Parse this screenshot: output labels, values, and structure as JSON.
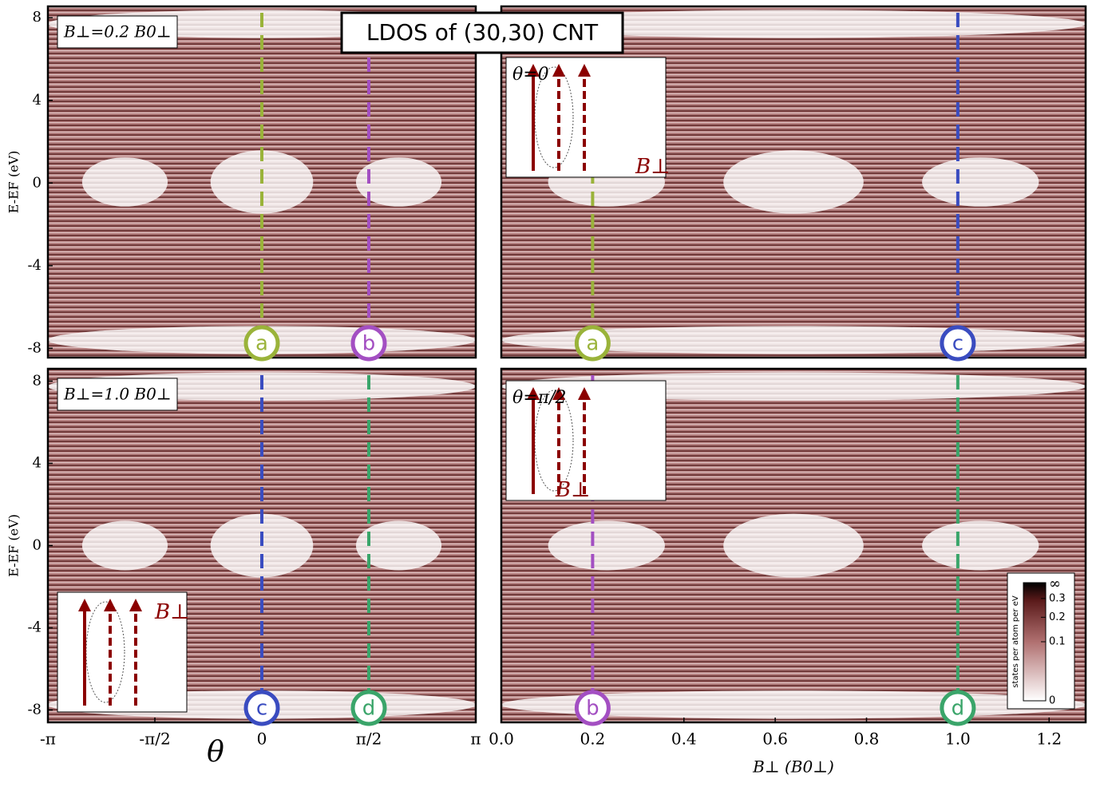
{
  "title": "LDOS of (30,30) CNT",
  "chart_data": [
    {
      "type": "heatmap",
      "annotation": "B⊥=0.2 B0⊥",
      "ylabel": "E-EF (eV)",
      "xlim": [
        -3.1416,
        3.1416
      ],
      "ylim": [
        -8.45,
        8.55
      ],
      "yticks": [
        -8,
        -4,
        0,
        4,
        8
      ],
      "markers": [
        {
          "x": 0,
          "label": "a",
          "color": "#9ab33a"
        },
        {
          "x": 1.5708,
          "label": "b",
          "color": "#a34fc2"
        }
      ]
    },
    {
      "type": "heatmap",
      "annotation": "θ=0",
      "inset_label": "B⊥",
      "xlim": [
        0,
        1.28
      ],
      "ylim": [
        -8.45,
        8.55
      ],
      "markers": [
        {
          "x": 0.2,
          "label": "a",
          "color": "#9ab33a"
        },
        {
          "x": 1.0,
          "label": "c",
          "color": "#3a4cc0"
        }
      ]
    },
    {
      "type": "heatmap",
      "annotation": "B⊥=1.0 B0⊥",
      "inset_label": "B⊥",
      "ylabel": "E-EF (eV)",
      "xlabel": "θ",
      "xlim": [
        -3.1416,
        3.1416
      ],
      "ylim": [
        -8.6,
        8.6
      ],
      "yticks": [
        -8,
        -4,
        0,
        4,
        8
      ],
      "xticks": [
        {
          "value": -3.1416,
          "label": "-π"
        },
        {
          "value": -1.5708,
          "label": "-π/2"
        },
        0,
        {
          "value": 1.5708,
          "label": "π/2"
        },
        {
          "value": 3.1416,
          "label": "π"
        }
      ],
      "markers": [
        {
          "x": 0,
          "label": "c",
          "color": "#3a4cc0"
        },
        {
          "x": 1.5708,
          "label": "d",
          "color": "#3aa56a"
        }
      ]
    },
    {
      "type": "heatmap",
      "annotation": "θ=π/2",
      "inset_label": "B⊥",
      "xlabel": "B⊥ (B0⊥)",
      "xlim": [
        0,
        1.28
      ],
      "ylim": [
        -8.6,
        8.6
      ],
      "xticks": [
        {
          "value": 0,
          "label": "0.0"
        },
        0.2,
        0.4,
        0.6,
        0.8,
        {
          "value": 1.0,
          "label": "1.0"
        },
        1.2
      ],
      "markers": [
        {
          "x": 0.2,
          "label": "b",
          "color": "#a34fc2"
        },
        {
          "x": 1.0,
          "label": "d",
          "color": "#3aa56a"
        }
      ],
      "colorbar": {
        "label": "states per atom per eV",
        "clim": [
          0,
          0.4
        ],
        "scale": "sqrt",
        "top_label": "∞",
        "ticks": [
          0,
          0.1,
          0.2,
          0.3
        ]
      }
    }
  ]
}
